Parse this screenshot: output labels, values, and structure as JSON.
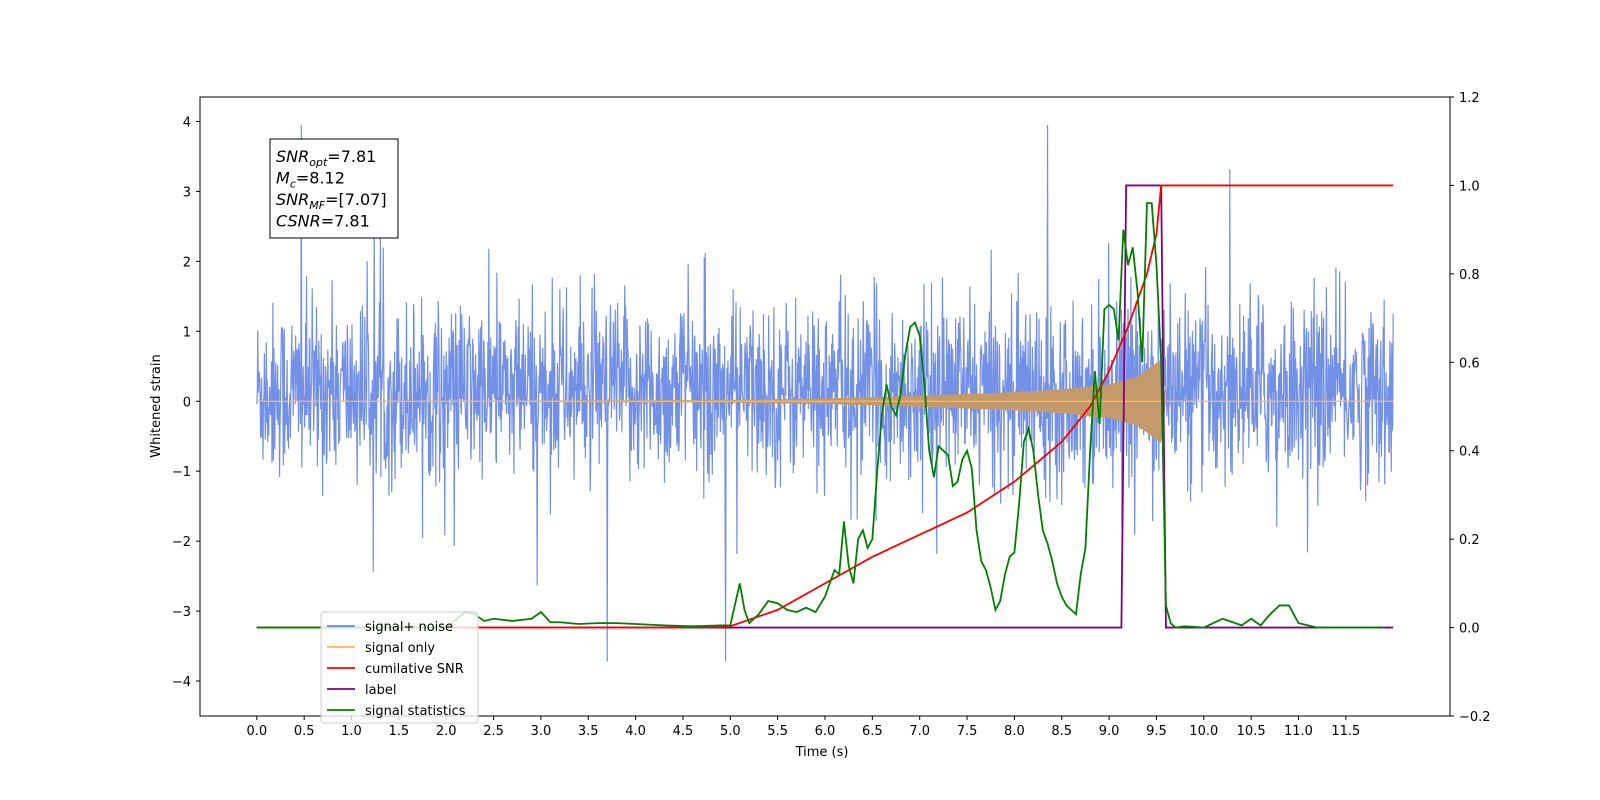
{
  "chart_data": {
    "type": "line",
    "xlabel": "Time (s)",
    "ylabel": "Whitened strain",
    "xlim": [
      -0.6,
      12.6
    ],
    "ylim_left": [
      -4.5,
      4.35
    ],
    "ylim_right": [
      -0.2,
      1.2
    ],
    "x_ticks": [
      0.0,
      0.5,
      1.0,
      1.5,
      2.0,
      2.5,
      3.0,
      3.5,
      4.0,
      4.5,
      5.0,
      5.5,
      6.0,
      6.5,
      7.0,
      7.5,
      8.0,
      8.5,
      9.0,
      9.5,
      10.0,
      10.5,
      11.0,
      11.5
    ],
    "x_tick_labels": [
      "0.0",
      "0.5",
      "1.0",
      "1.5",
      "2.0",
      "2.5",
      "3.0",
      "3.5",
      "4.0",
      "4.5",
      "5.0",
      "5.5",
      "6.0",
      "6.5",
      "7.0",
      "7.5",
      "8.0",
      "8.5",
      "9.0",
      "9.5",
      "10.0",
      "10.5",
      "11.0",
      "11.5"
    ],
    "y_left_ticks": [
      -4,
      -3,
      -2,
      -1,
      0,
      1,
      2,
      3,
      4
    ],
    "y_left_tick_labels": [
      "−4",
      "−3",
      "−2",
      "−1",
      "0",
      "1",
      "2",
      "3",
      "4"
    ],
    "y_right_ticks": [
      -0.2,
      0.0,
      0.2,
      0.4,
      0.6,
      0.8,
      1.0,
      1.2
    ],
    "y_right_tick_labels": [
      "−0.2",
      "0.0",
      "0.2",
      "0.4",
      "0.6",
      "0.8",
      "1.0",
      "1.2"
    ],
    "grid": false,
    "legend_position": "lower-left",
    "colors": {
      "noise": "#6b8ae6",
      "signal": "#ffb74d",
      "signal_fill": "#c49a6c",
      "snr": "#ff0000",
      "label": "#800080",
      "stats": "#008000"
    },
    "annotation": {
      "lines": [
        {
          "base": "SNR",
          "sub": "opt",
          "value": "=7.81"
        },
        {
          "base": "M",
          "sub": "c",
          "value": "=8.12"
        },
        {
          "base": "SNR",
          "sub": "MF",
          "value": "=[7.07]"
        },
        {
          "base": "CSNR",
          "sub": "",
          "value": "=7.81"
        }
      ]
    },
    "legend": [
      {
        "label": "signal+ noise",
        "color": "#6b8ae6"
      },
      {
        "label": "signal only",
        "color": "#ffb74d"
      },
      {
        "label": "cumilative SNR",
        "color": "#ff0000"
      },
      {
        "label": "label",
        "color": "#800080"
      },
      {
        "label": "signal statistics",
        "color": "#008000"
      }
    ],
    "series": [
      {
        "name": "signal+ noise",
        "axis": "left",
        "description_of_data": "broadband whitened noise, approx. +-1.5 sigma band with spikes up to ~4",
        "time_range": [
          0.0,
          12.0
        ],
        "typical_envelope": [
          -1.5,
          2.0
        ],
        "max_peaks": [
          [
            0.47,
            3.95
          ],
          [
            8.35,
            3.95
          ],
          [
            3.7,
            -3.72
          ],
          [
            4.95,
            -3.72
          ]
        ]
      },
      {
        "name": "signal only",
        "axis": "left",
        "description_of_data": "chirp waveform with amplitude growing until merger",
        "x": [
          0.0,
          5.0,
          6.0,
          7.0,
          8.0,
          8.5,
          9.0,
          9.3,
          9.5,
          9.55,
          9.6,
          12.0
        ],
        "envelope": [
          0.0,
          0.02,
          0.04,
          0.08,
          0.13,
          0.17,
          0.24,
          0.35,
          0.55,
          0.6,
          0.0,
          0.0
        ]
      },
      {
        "name": "cumilative SNR",
        "axis": "right",
        "x": [
          0.0,
          4.5,
          5.0,
          5.5,
          6.0,
          6.5,
          7.0,
          7.5,
          8.0,
          8.5,
          8.8,
          9.0,
          9.2,
          9.4,
          9.5,
          9.55,
          12.0
        ],
        "y": [
          0.0,
          0.0,
          0.003,
          0.04,
          0.1,
          0.16,
          0.21,
          0.26,
          0.33,
          0.42,
          0.5,
          0.58,
          0.68,
          0.8,
          0.89,
          1.0,
          1.0
        ]
      },
      {
        "name": "label",
        "axis": "right",
        "x": [
          0.0,
          9.13,
          9.18,
          9.55,
          9.6,
          12.0
        ],
        "y": [
          0.0,
          0.0,
          1.0,
          1.0,
          0.0,
          0.0
        ]
      },
      {
        "name": "signal statistics",
        "axis": "right",
        "x": [
          0.0,
          0.5,
          1.0,
          1.5,
          2.0,
          2.2,
          2.3,
          2.4,
          2.5,
          2.7,
          2.9,
          3.0,
          3.1,
          3.2,
          3.4,
          3.6,
          3.8,
          4.0,
          4.3,
          4.6,
          4.9,
          5.0,
          5.1,
          5.15,
          5.2,
          5.3,
          5.4,
          5.5,
          5.6,
          5.7,
          5.8,
          5.9,
          6.0,
          6.1,
          6.15,
          6.2,
          6.25,
          6.3,
          6.35,
          6.4,
          6.45,
          6.5,
          6.55,
          6.6,
          6.65,
          6.7,
          6.75,
          6.8,
          6.85,
          6.9,
          6.95,
          7.0,
          7.05,
          7.1,
          7.15,
          7.2,
          7.25,
          7.3,
          7.35,
          7.4,
          7.45,
          7.5,
          7.55,
          7.6,
          7.65,
          7.7,
          7.75,
          7.8,
          7.85,
          7.9,
          7.95,
          8.0,
          8.05,
          8.1,
          8.15,
          8.2,
          8.25,
          8.3,
          8.35,
          8.4,
          8.45,
          8.5,
          8.55,
          8.6,
          8.65,
          8.7,
          8.75,
          8.8,
          8.85,
          8.9,
          8.95,
          9.0,
          9.05,
          9.1,
          9.15,
          9.2,
          9.25,
          9.3,
          9.35,
          9.4,
          9.45,
          9.5,
          9.55,
          9.6,
          9.65,
          9.7,
          9.8,
          10.0,
          10.2,
          10.4,
          10.5,
          10.6,
          10.7,
          10.8,
          10.9,
          11.0,
          11.2,
          11.5,
          11.9
        ],
        "y": [
          0.0,
          0.0,
          0.0,
          0.0,
          0.0,
          0.035,
          0.03,
          0.015,
          0.02,
          0.015,
          0.02,
          0.035,
          0.012,
          0.012,
          0.008,
          0.01,
          0.01,
          0.008,
          0.005,
          0.003,
          0.005,
          0.005,
          0.1,
          0.04,
          0.01,
          0.03,
          0.06,
          0.055,
          0.04,
          0.035,
          0.045,
          0.035,
          0.07,
          0.13,
          0.12,
          0.24,
          0.14,
          0.1,
          0.2,
          0.22,
          0.18,
          0.2,
          0.35,
          0.48,
          0.55,
          0.5,
          0.48,
          0.53,
          0.62,
          0.68,
          0.69,
          0.66,
          0.55,
          0.4,
          0.34,
          0.41,
          0.4,
          0.39,
          0.32,
          0.33,
          0.38,
          0.4,
          0.36,
          0.22,
          0.15,
          0.13,
          0.09,
          0.04,
          0.06,
          0.12,
          0.16,
          0.17,
          0.28,
          0.42,
          0.45,
          0.4,
          0.3,
          0.22,
          0.19,
          0.15,
          0.1,
          0.07,
          0.05,
          0.04,
          0.03,
          0.12,
          0.18,
          0.4,
          0.58,
          0.46,
          0.72,
          0.73,
          0.72,
          0.65,
          0.9,
          0.82,
          0.86,
          0.76,
          0.6,
          0.96,
          0.96,
          0.82,
          0.6,
          0.05,
          0.01,
          0.0,
          0.003,
          0.0,
          0.02,
          0.005,
          0.02,
          0.005,
          0.03,
          0.05,
          0.05,
          0.01,
          0.0,
          0.0,
          0.0
        ]
      }
    ]
  }
}
